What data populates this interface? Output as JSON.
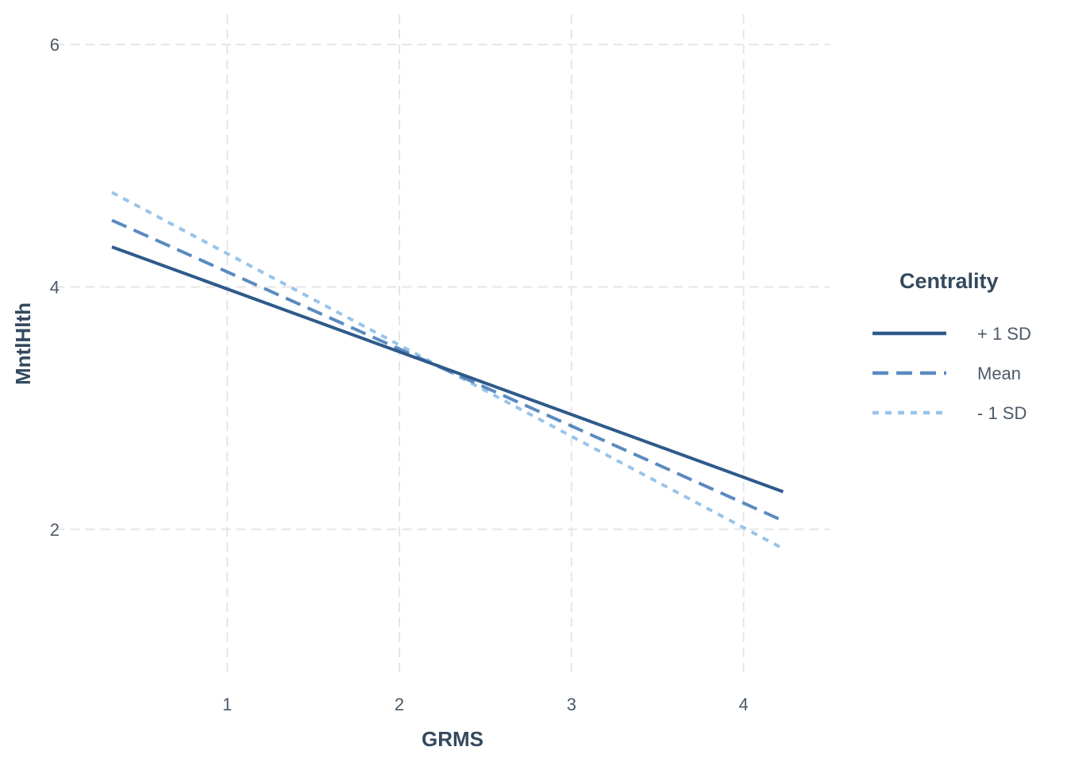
{
  "chart_data": {
    "type": "line",
    "title": "",
    "xlabel": "GRMS",
    "ylabel": "MntlHlth",
    "xlim": [
      0,
      4.5
    ],
    "ylim": [
      0.8,
      6.25
    ],
    "x_ticks": [
      1,
      2,
      3,
      4
    ],
    "y_ticks": [
      2,
      4,
      6
    ],
    "grid": true,
    "legend": {
      "title": "Centrality",
      "position": "right"
    },
    "series": [
      {
        "name": "+ 1 SD",
        "x": [
          0.33,
          4.23
        ],
        "y": [
          4.33,
          2.31
        ],
        "color": "#2e5a8a",
        "linestyle": "solid"
      },
      {
        "name": "Mean",
        "x": [
          0.33,
          4.23
        ],
        "y": [
          4.55,
          2.07
        ],
        "color": "#5b8ac0",
        "linestyle": "dashed"
      },
      {
        "name": "- 1 SD",
        "x": [
          0.33,
          4.23
        ],
        "y": [
          4.78,
          1.84
        ],
        "color": "#99c4ea",
        "linestyle": "dotted"
      }
    ]
  }
}
